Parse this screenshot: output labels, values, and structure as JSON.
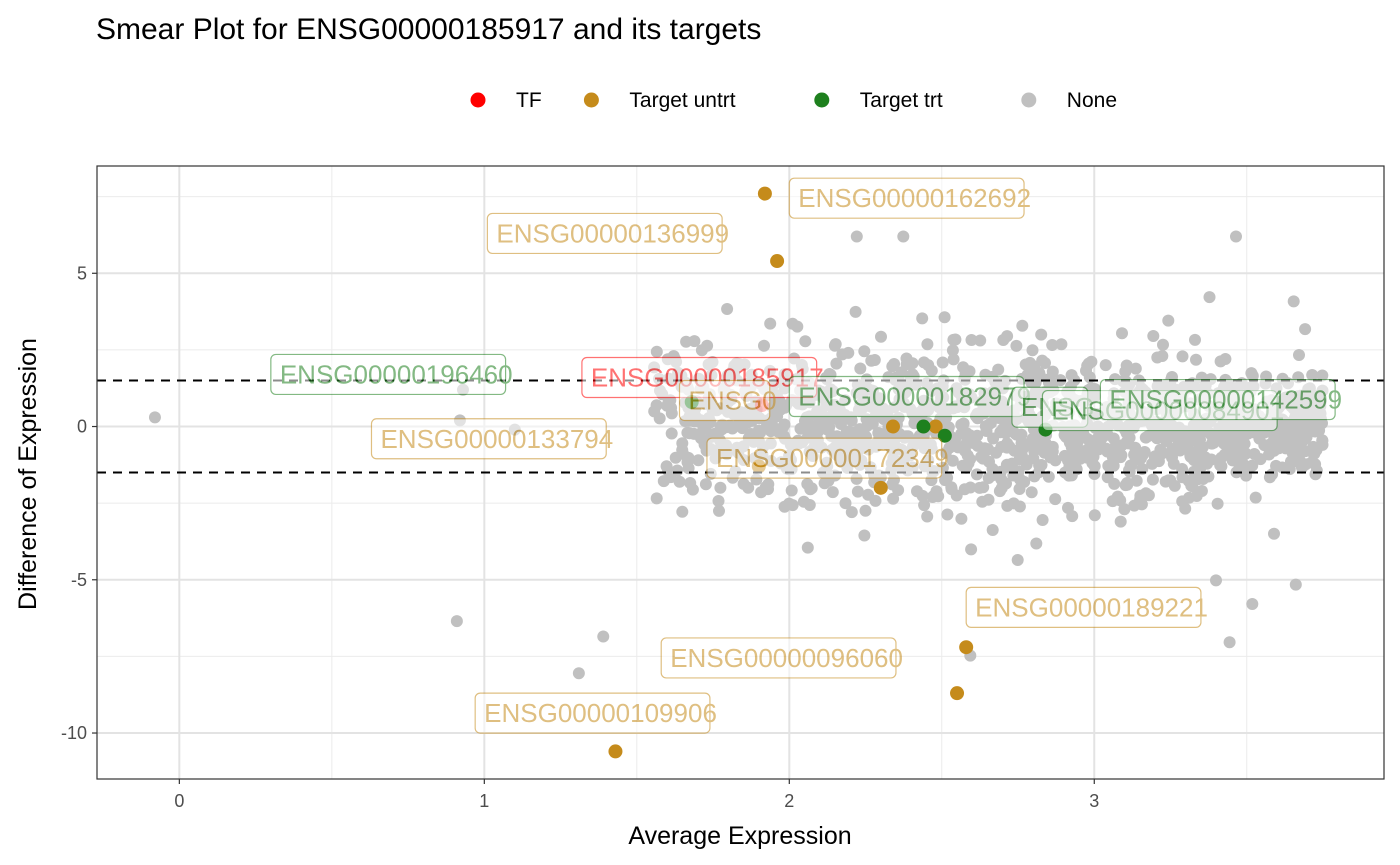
{
  "chart_data": {
    "type": "scatter",
    "title": "Smear Plot for ENSG00000185917 and its targets",
    "xlabel": "Average Expression",
    "ylabel": "Difference of Expression",
    "xlim": [
      -0.27,
      3.95
    ],
    "ylim": [
      -11.5,
      8.5
    ],
    "x_ticks": [
      0,
      1,
      2,
      3
    ],
    "y_ticks": [
      -10,
      -5,
      0,
      5
    ],
    "x_tick_labels": [
      "0",
      "1",
      "2",
      "3"
    ],
    "y_tick_labels": [
      "-10",
      "-5",
      "0",
      "5"
    ],
    "grid": true,
    "threshold_lines": [
      1.5,
      -1.5
    ],
    "legend_position": "top",
    "legend": [
      {
        "name": "TF",
        "color": "#FF0000"
      },
      {
        "name": "Target untrt",
        "color": "#C58B1B"
      },
      {
        "name": "Target trt",
        "color": "#1E801E"
      },
      {
        "name": "None",
        "color": "#C0C0C0"
      }
    ],
    "highlighted": [
      {
        "id": "ENSG00000185917",
        "group": "TF",
        "x": 1.91,
        "y": 0.7
      },
      {
        "id": "ENSG00000162692",
        "group": "Target untrt",
        "x": 1.92,
        "y": 7.6
      },
      {
        "id": "ENSG00000136999",
        "group": "Target untrt",
        "x": 1.96,
        "y": 5.4
      },
      {
        "id": "ENSG00000133794",
        "group": "Target untrt",
        "x": 1.9,
        "y": -1.3
      },
      {
        "id": "ENSG00000172349",
        "group": "Target untrt",
        "x": 2.3,
        "y": -2.0
      },
      {
        "id": "ENSG00000189221",
        "group": "Target untrt",
        "x": 2.58,
        "y": -7.2
      },
      {
        "id": "ENSG00000096060",
        "group": "Target untrt",
        "x": 2.55,
        "y": -8.7
      },
      {
        "id": "ENSG00000109906",
        "group": "Target untrt",
        "x": 1.43,
        "y": -10.6
      },
      {
        "id": "",
        "group": "Target untrt",
        "x": 2.34,
        "y": 0.0
      },
      {
        "id": "",
        "group": "Target untrt",
        "x": 2.48,
        "y": 0.0
      },
      {
        "id": "ENSG00000196460",
        "group": "Target trt",
        "x": 1.68,
        "y": 0.8
      },
      {
        "id": "ENSG00000182979",
        "group": "Target trt",
        "x": 2.44,
        "y": 0.0
      },
      {
        "id": "ENSG00000142599",
        "group": "Target trt",
        "x": 2.51,
        "y": -0.3
      },
      {
        "id": "",
        "group": "Target trt",
        "x": 2.84,
        "y": -0.1
      }
    ],
    "labels": [
      {
        "text": "ENSG00000162692",
        "group": "Target untrt",
        "x": 2.0,
        "y": 7.45
      },
      {
        "text": "ENSG00000136999",
        "group": "Target untrt",
        "x": 1.01,
        "y": 6.3
      },
      {
        "text": "ENSG00000196460",
        "group": "Target trt",
        "x": 0.3,
        "y": 1.7
      },
      {
        "text": "ENSG00000185917",
        "group": "TF",
        "x": 1.32,
        "y": 1.6
      },
      {
        "text": "ENSG0",
        "group": "Target untrt",
        "x": 1.64,
        "y": 0.85
      },
      {
        "text": "ENSG00000182979",
        "group": "Target trt",
        "x": 2.0,
        "y": 0.98
      },
      {
        "text": "ENSG",
        "group": "Target trt",
        "x": 2.73,
        "y": 0.63
      },
      {
        "text": "ENSG00000084901",
        "group": "Target trt",
        "x": 2.83,
        "y": 0.52
      },
      {
        "text": "ENSG00000142599",
        "group": "Target trt",
        "x": 3.02,
        "y": 0.88
      },
      {
        "text": "ENSG00000133794",
        "group": "Target untrt",
        "x": 0.63,
        "y": -0.4
      },
      {
        "text": "ENSG00000172349",
        "group": "Target untrt",
        "x": 1.73,
        "y": -1.03
      },
      {
        "text": "ENSG00000189221",
        "group": "Target untrt",
        "x": 2.58,
        "y": -5.9
      },
      {
        "text": "ENSG00000096060",
        "group": "Target untrt",
        "x": 1.58,
        "y": -7.55
      },
      {
        "text": "ENSG00000109906",
        "group": "Target untrt",
        "x": 0.97,
        "y": -9.35
      }
    ],
    "background_points_count": 1400
  }
}
